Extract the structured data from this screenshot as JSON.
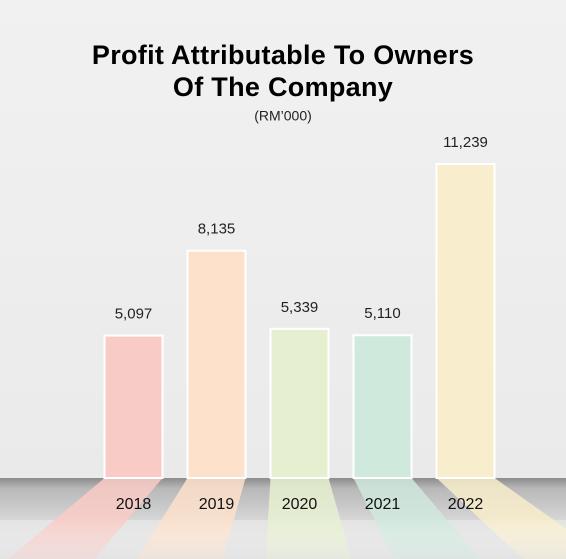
{
  "chart_data": {
    "type": "bar",
    "title_lines": [
      "Profit Attributable To Owners",
      "Of The Company"
    ],
    "subtitle": "(RM’000)",
    "categories": [
      "2018",
      "2019",
      "2020",
      "2021",
      "2022"
    ],
    "values": [
      5097,
      8135,
      5339,
      5110,
      11239
    ],
    "value_labels": [
      "5,097",
      "8,135",
      "5,339",
      "5,110",
      "11,239"
    ],
    "colors": [
      "#f9cbc6",
      "#fde1cb",
      "#e6f0d0",
      "#cfe9dd",
      "#f8edcc"
    ]
  }
}
